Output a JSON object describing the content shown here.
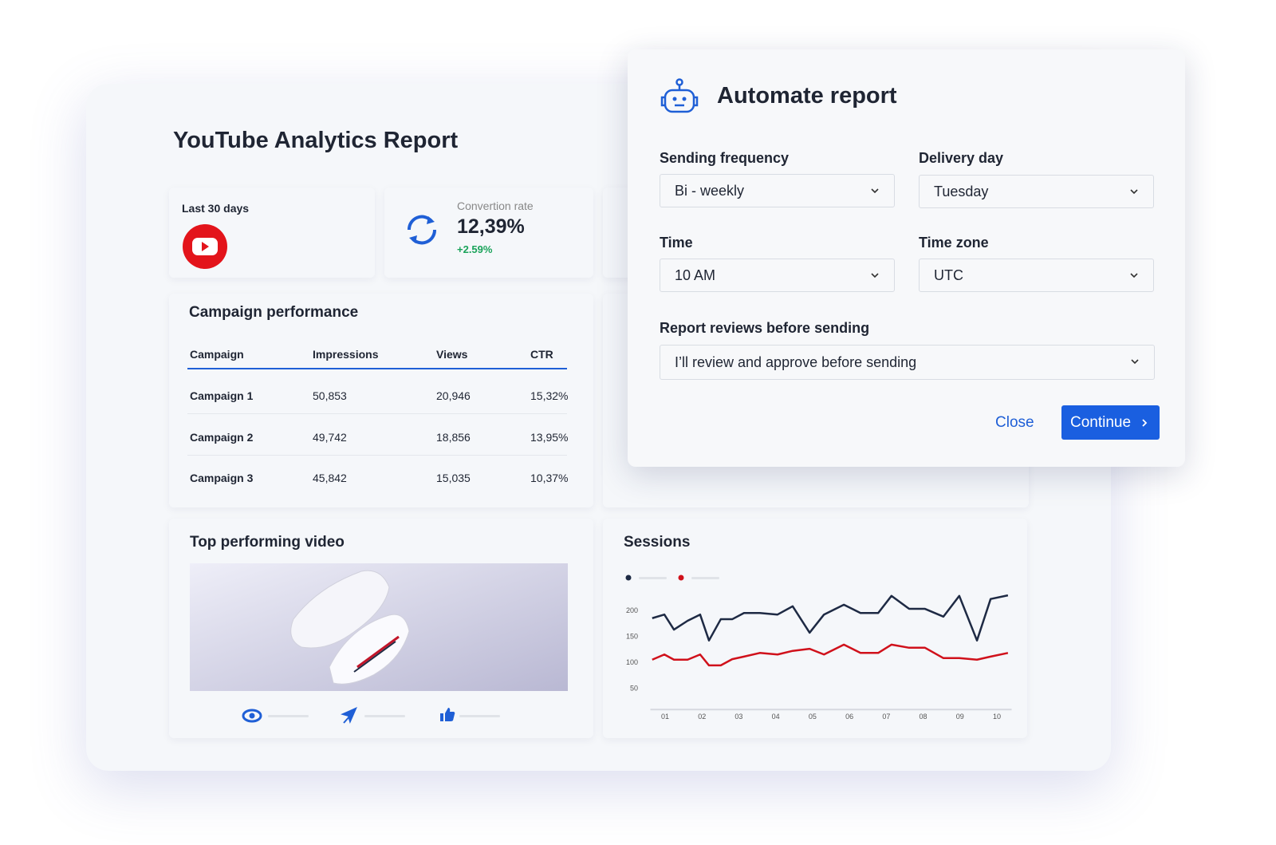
{
  "report": {
    "title": "YouTube Analytics Report",
    "period": "Last 30 days",
    "kpi": {
      "label": "Convertion rate",
      "value": "12,39%",
      "change": "+2.59%"
    }
  },
  "campaigns": {
    "title": "Campaign performance",
    "columns": [
      "Campaign",
      "Impressions",
      "Views",
      "CTR"
    ],
    "rows": [
      [
        "Campaign 1",
        "50,853",
        "20,946",
        "15,32%"
      ],
      [
        "Campaign 2",
        "49,742",
        "18,856",
        "13,95%"
      ],
      [
        "Campaign 3",
        "45,842",
        "15,035",
        "10,37%"
      ]
    ]
  },
  "video": {
    "title": "Top performing video"
  },
  "dialog": {
    "title": "Automate report",
    "fields": [
      {
        "label": "Sending frequency",
        "value": "Bi - weekly"
      },
      {
        "label": "Delivery day",
        "value": "Tuesday"
      },
      {
        "label": "Time",
        "value": "10 AM"
      },
      {
        "label": "Time zone",
        "value": "UTC"
      },
      {
        "label": "Report reviews before sending",
        "value": "I’ll review and approve before sending"
      }
    ],
    "buttons": {
      "close": "Close",
      "continue": "Continue"
    }
  },
  "chart_data": {
    "type": "line",
    "title": "Sessions",
    "x": [
      0.65,
      0.98,
      1.24,
      1.61,
      1.95,
      2.19,
      2.51,
      2.82,
      3.14,
      3.57,
      4.05,
      4.46,
      4.92,
      5.31,
      5.85,
      6.3,
      6.78,
      7.14,
      7.62,
      8.05,
      8.55,
      8.98,
      9.46,
      9.83,
      10.3
    ],
    "series": [
      {
        "color": "#1e2a44",
        "values": [
          185,
          192,
          163,
          180,
          192,
          142,
          183,
          183,
          195,
          195,
          192,
          208,
          157,
          192,
          211,
          195,
          195,
          228,
          203,
          203,
          188,
          228,
          142,
          222,
          229
        ]
      },
      {
        "color": "#d0111b",
        "values": [
          105,
          115,
          105,
          105,
          115,
          94,
          94,
          106,
          111,
          118,
          115,
          122,
          126,
          115,
          134,
          118,
          118,
          134,
          128,
          128,
          108,
          108,
          105,
          111,
          118
        ]
      }
    ],
    "xlim": [
      0.6,
      10.4
    ],
    "xticks": [
      {
        "value": 1,
        "label": "01"
      },
      {
        "value": 2,
        "label": "02"
      },
      {
        "value": 3,
        "label": "03"
      },
      {
        "value": 4,
        "label": "04"
      },
      {
        "value": 5,
        "label": "05"
      },
      {
        "value": 6,
        "label": "06"
      },
      {
        "value": 7,
        "label": "07"
      },
      {
        "value": 8,
        "label": "08"
      },
      {
        "value": 9,
        "label": "09"
      },
      {
        "value": 10,
        "label": "10"
      }
    ],
    "ylim": [
      15,
      240
    ],
    "yticks": [
      50,
      100,
      150,
      200
    ],
    "grid": false
  }
}
